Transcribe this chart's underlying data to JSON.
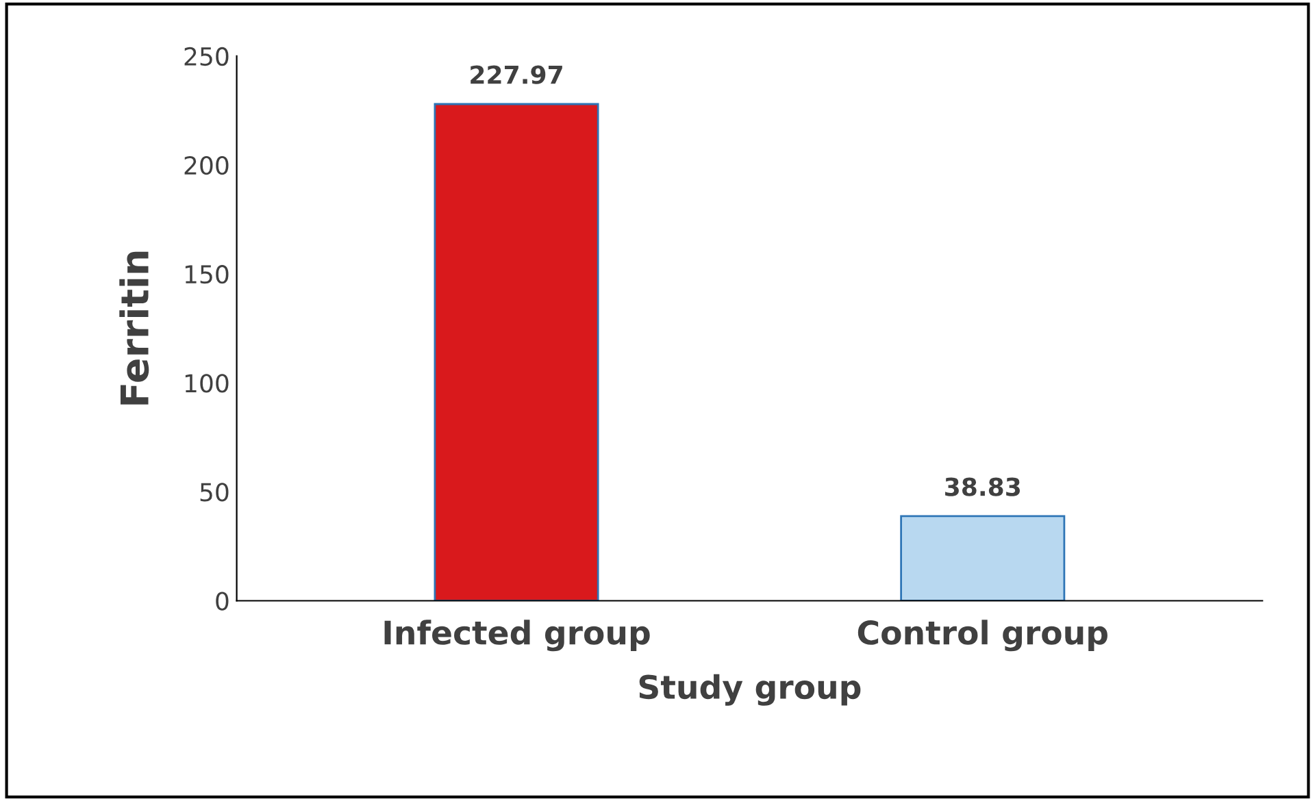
{
  "chart_data": {
    "type": "bar",
    "xlabel": "Study group",
    "ylabel": "Ferritin",
    "categories": [
      "Infected group",
      "Control group"
    ],
    "values": [
      227.97,
      38.83
    ],
    "colors": [
      "#d9191c",
      "#b8d8f0"
    ],
    "ylim": [
      0,
      250
    ],
    "yticks": [
      0,
      50,
      100,
      150,
      200,
      250
    ],
    "data_labels": true,
    "grid": false
  }
}
